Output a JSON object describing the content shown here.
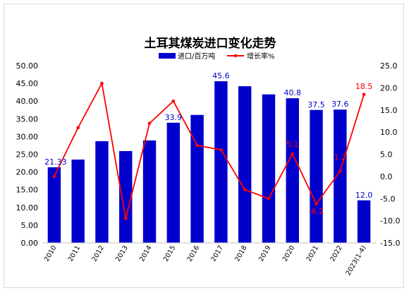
{
  "chart_data": {
    "type": "bar",
    "title": "土耳其煤炭进口变化走势",
    "categories": [
      "2010",
      "2011",
      "2012",
      "2013",
      "2014",
      "2015",
      "2016",
      "2017",
      "2018",
      "2019",
      "2020",
      "2021",
      "2022",
      "2023(1-4)"
    ],
    "series": [
      {
        "name": "进口/百万吨",
        "type": "bar",
        "axis": "left",
        "color": "#0000cc",
        "values": [
          21.33,
          23.5,
          28.7,
          25.9,
          28.9,
          33.9,
          36.1,
          45.6,
          44.2,
          41.9,
          40.8,
          37.5,
          37.6,
          12.0
        ],
        "data_labels": [
          "21.33",
          "",
          "",
          "",
          "",
          "33.9",
          "",
          "45.6",
          "",
          "",
          "40.8",
          "37.5",
          "37.6",
          "12.0"
        ]
      },
      {
        "name": "增长率%",
        "type": "line",
        "axis": "right",
        "color": "#ff0000",
        "values": [
          0.0,
          11.0,
          21.0,
          -9.5,
          12.0,
          17.0,
          7.0,
          6.0,
          -3.0,
          -5.0,
          5.1,
          -6.2,
          1.2,
          18.5
        ],
        "data_labels": [
          "",
          "",
          "",
          "",
          "",
          "",
          "",
          "",
          "",
          "",
          "5.1",
          "-6.2",
          "1.2",
          "18.5"
        ]
      }
    ],
    "y_left": {
      "min": 0,
      "max": 50,
      "step": 5,
      "decimals": 2
    },
    "y_right": {
      "min": -15,
      "max": 25,
      "step": 5,
      "decimals": 1
    },
    "legend_position": "top-center",
    "grid": false
  }
}
